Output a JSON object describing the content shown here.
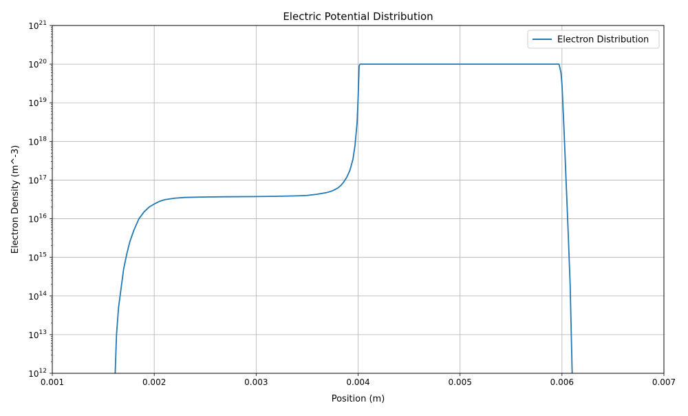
{
  "chart_data": {
    "type": "line",
    "title": "Electric Potential Distribution",
    "xlabel": "Position (m)",
    "ylabel": "Electron Density (m^-3)",
    "xlim": [
      0.001,
      0.007
    ],
    "ylim": [
      1000000000000.0,
      1e+21
    ],
    "yscale": "log",
    "grid": true,
    "legend": "top-right",
    "x_ticks": [
      {
        "value": 0.001,
        "label": "0.001"
      },
      {
        "value": 0.002,
        "label": "0.002"
      },
      {
        "value": 0.003,
        "label": "0.003"
      },
      {
        "value": 0.004,
        "label": "0.004"
      },
      {
        "value": 0.005,
        "label": "0.005"
      },
      {
        "value": 0.006,
        "label": "0.006"
      },
      {
        "value": 0.007,
        "label": "0.007"
      }
    ],
    "y_ticks": [
      {
        "value": 1000000000000.0,
        "base": "10",
        "exp": "12"
      },
      {
        "value": 10000000000000.0,
        "base": "10",
        "exp": "13"
      },
      {
        "value": 100000000000000.0,
        "base": "10",
        "exp": "14"
      },
      {
        "value": 1000000000000000.0,
        "base": "10",
        "exp": "15"
      },
      {
        "value": 1e+16,
        "base": "10",
        "exp": "16"
      },
      {
        "value": 1e+17,
        "base": "10",
        "exp": "17"
      },
      {
        "value": 1e+18,
        "base": "10",
        "exp": "18"
      },
      {
        "value": 1e+19,
        "base": "10",
        "exp": "19"
      },
      {
        "value": 1e+20,
        "base": "10",
        "exp": "20"
      },
      {
        "value": 1e+21,
        "base": "10",
        "exp": "21"
      }
    ],
    "series": [
      {
        "name": "Electron Distribution",
        "color": "#1f77b4",
        "x": [
          0.001617,
          0.00163,
          0.00165,
          0.00168,
          0.0017,
          0.00173,
          0.00176,
          0.0018,
          0.00185,
          0.0019,
          0.00195,
          0.002,
          0.00205,
          0.0021,
          0.0022,
          0.0023,
          0.0025,
          0.0027,
          0.003,
          0.0032,
          0.0034,
          0.0035,
          0.0036,
          0.0037,
          0.00375,
          0.0038,
          0.00383,
          0.00386,
          0.00389,
          0.00392,
          0.00395,
          0.00397,
          0.00399,
          0.004,
          0.00401,
          0.00402,
          0.00405,
          0.0045,
          0.005,
          0.0055,
          0.00597,
          0.00598,
          0.00599,
          0.006,
          0.00602,
          0.00604,
          0.00606,
          0.00608,
          0.0061
        ],
        "y": [
          1000000000000.0,
          10000000000000.0,
          50000000000000.0,
          200000000000000.0,
          500000000000000.0,
          1200000000000000.0,
          2500000000000000.0,
          5000000000000000.0,
          1e+16,
          1.5e+16,
          2e+16,
          2.4e+16,
          2.8e+16,
          3.1e+16,
          3.4e+16,
          3.55e+16,
          3.65e+16,
          3.7e+16,
          3.75e+16,
          3.8e+16,
          3.9e+16,
          4e+16,
          4.3e+16,
          4.8e+16,
          5.3e+16,
          6.2e+16,
          7.2e+16,
          9e+16,
          1.2e+17,
          1.8e+17,
          3.5e+17,
          8e+17,
          3e+18,
          1.3e+19,
          9e+19,
          1e+20,
          1e+20,
          1e+20,
          1e+20,
          1e+20,
          1e+20,
          8e+19,
          6e+19,
          3e+19,
          2e+18,
          1e+17,
          5000000000000000.0,
          200000000000000.0,
          1000000000000.0
        ]
      }
    ]
  }
}
